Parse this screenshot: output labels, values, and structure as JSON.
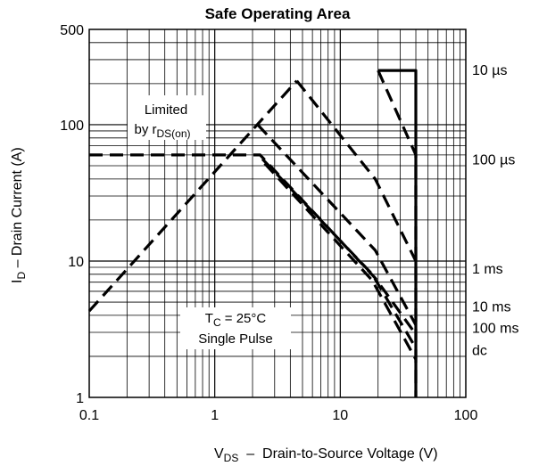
{
  "chart_data": {
    "type": "line",
    "title": "Safe Operating Area",
    "xlabel": {
      "main": "V",
      "sub": "DS",
      "rest": "  –  Drain-to-Source Voltage (V)"
    },
    "ylabel": {
      "main": "I",
      "sub": "D",
      "rest": " – Drain Current (A)"
    },
    "x_scale": "log",
    "y_scale": "log",
    "xlim": [
      0.1,
      100
    ],
    "ylim": [
      1,
      500
    ],
    "x_ticks": [
      {
        "v": 0.1,
        "label": "0.1"
      },
      {
        "v": 1,
        "label": "1"
      },
      {
        "v": 10,
        "label": "10"
      },
      {
        "v": 100,
        "label": "100"
      }
    ],
    "y_ticks": [
      {
        "v": 1,
        "label": "1"
      },
      {
        "v": 10,
        "label": "10"
      },
      {
        "v": 100,
        "label": "100"
      },
      {
        "v": 500,
        "label": "500"
      }
    ],
    "grid": true,
    "annotations": {
      "limited_line1": "Limited",
      "limited_line2_main": "by r",
      "limited_line2_sub": "DS(on)",
      "tc_main": "T",
      "tc_sub": "C",
      "tc_rest": " = 25°C",
      "single_pulse": "Single Pulse"
    },
    "series": [
      {
        "name": "10 µs",
        "style": "solid",
        "points": [
          [
            20,
            250
          ],
          [
            40,
            250
          ],
          [
            40,
            1
          ]
        ]
      },
      {
        "name": "Limited by rDS(on)",
        "style": "dashed",
        "points": [
          [
            0.1,
            4.3
          ],
          [
            4.5,
            210
          ]
        ]
      },
      {
        "name": "10 µs",
        "style": "dashed",
        "points": [
          [
            4.5,
            210
          ],
          [
            19,
            40
          ],
          [
            40,
            10
          ]
        ]
      },
      {
        "name": "100 µs",
        "style": "dashed",
        "points": [
          [
            2.2,
            100
          ],
          [
            19,
            12
          ],
          [
            40,
            3.4
          ]
        ]
      },
      {
        "name": "1 ms",
        "style": "dashed",
        "points": [
          [
            0.1,
            60
          ],
          [
            2.3,
            60
          ],
          [
            19,
            7.5
          ],
          [
            40,
            2.9
          ]
        ]
      },
      {
        "name": "10 ms",
        "style": "dashed",
        "points": [
          [
            2.4,
            56
          ],
          [
            18,
            8
          ],
          [
            40,
            2.3
          ]
        ]
      },
      {
        "name": "100 ms",
        "style": "dashed",
        "points": [
          [
            2.5,
            52
          ],
          [
            18,
            7.2
          ],
          [
            40,
            1.9
          ]
        ]
      },
      {
        "name": "dc",
        "style": "dashed",
        "points": [
          [
            20,
            250
          ],
          [
            40,
            60
          ],
          [
            40,
            1
          ]
        ]
      }
    ],
    "series_labels": [
      {
        "text": "10 µs",
        "y": 250
      },
      {
        "text": "100 µs",
        "y": 55
      },
      {
        "text": "1 ms",
        "y": 8.7
      },
      {
        "text": "10 ms",
        "y": 4.6
      },
      {
        "text": "100 ms",
        "y": 3.2
      },
      {
        "text": "dc",
        "y": 2.2
      }
    ]
  }
}
